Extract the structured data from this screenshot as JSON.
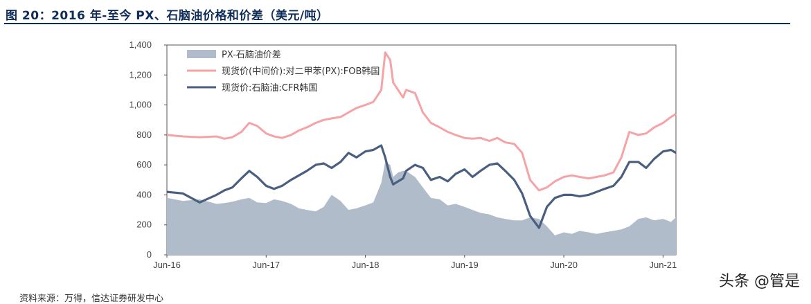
{
  "figure": {
    "title": "图 20：2016 年-至今 PX、石脑油价格和价差（美元/吨）",
    "source": "资料来源：万得，信达证券研发中心",
    "watermark": "头条 @管是"
  },
  "colors": {
    "title": "#0f2d5a",
    "spread": "#b1bccb",
    "px": "#f5a3a6",
    "naphtha": "#4a5f80"
  },
  "chart_data": {
    "type": "line",
    "title": "",
    "xlabel": "",
    "ylabel": "",
    "ylim": [
      0,
      1400
    ],
    "yticks": [
      0,
      200,
      400,
      600,
      800,
      1000,
      1200,
      1400
    ],
    "ytick_labels": [
      "0",
      "200",
      "400",
      "600",
      "800",
      "1,000",
      "1,200",
      "1,400"
    ],
    "xlim": [
      2016.42,
      2021.55
    ],
    "xticks": [
      2016.42,
      2017.42,
      2018.42,
      2019.42,
      2020.42,
      2021.42
    ],
    "xtick_labels": [
      "Jun-16",
      "Jun-17",
      "Jun-18",
      "Jun-19",
      "Jun-20",
      "Jun-21"
    ],
    "x": [
      2016.42,
      2016.58,
      2016.75,
      2016.92,
      2017.0,
      2017.08,
      2017.17,
      2017.25,
      2017.33,
      2017.42,
      2017.5,
      2017.58,
      2017.67,
      2017.75,
      2017.83,
      2017.92,
      2018.0,
      2018.08,
      2018.17,
      2018.25,
      2018.33,
      2018.42,
      2018.5,
      2018.58,
      2018.62,
      2018.67,
      2018.7,
      2018.75,
      2018.8,
      2018.83,
      2018.92,
      2019.0,
      2019.08,
      2019.17,
      2019.25,
      2019.33,
      2019.42,
      2019.5,
      2019.58,
      2019.67,
      2019.75,
      2019.83,
      2019.92,
      2020.0,
      2020.08,
      2020.17,
      2020.25,
      2020.33,
      2020.42,
      2020.5,
      2020.58,
      2020.67,
      2020.75,
      2020.83,
      2020.92,
      2021.0,
      2021.08,
      2021.17,
      2021.25,
      2021.33,
      2021.42,
      2021.5,
      2021.55
    ],
    "series": [
      {
        "name": "PX-石脑油价差",
        "style": "area",
        "values": [
          380,
          360,
          370,
          340,
          345,
          355,
          370,
          380,
          350,
          345,
          370,
          360,
          340,
          310,
          300,
          290,
          320,
          400,
          360,
          300,
          310,
          330,
          350,
          480,
          620,
          600,
          520,
          550,
          560,
          560,
          520,
          450,
          380,
          370,
          330,
          340,
          320,
          300,
          280,
          270,
          250,
          240,
          230,
          230,
          250,
          240,
          190,
          130,
          150,
          140,
          160,
          150,
          140,
          150,
          160,
          170,
          190,
          240,
          250,
          230,
          240,
          220,
          250
        ]
      },
      {
        "name": "现货价(中间价):对二甲苯(PX):FOB韩国",
        "style": "line",
        "values": [
          800,
          790,
          785,
          790,
          775,
          785,
          820,
          880,
          860,
          810,
          790,
          780,
          800,
          830,
          850,
          880,
          900,
          910,
          920,
          950,
          980,
          1000,
          1020,
          1100,
          1350,
          1300,
          1150,
          1100,
          1050,
          1100,
          1080,
          950,
          880,
          850,
          820,
          800,
          780,
          775,
          780,
          760,
          780,
          750,
          740,
          680,
          500,
          430,
          450,
          490,
          520,
          530,
          520,
          510,
          520,
          530,
          550,
          650,
          820,
          800,
          810,
          850,
          880,
          920,
          940
        ]
      },
      {
        "name": "现货价:石脑油:CFR韩国",
        "style": "line",
        "values": [
          420,
          410,
          350,
          400,
          430,
          450,
          510,
          560,
          520,
          460,
          440,
          460,
          500,
          530,
          560,
          600,
          610,
          580,
          620,
          680,
          650,
          690,
          700,
          730,
          650,
          520,
          470,
          490,
          510,
          560,
          600,
          580,
          500,
          520,
          490,
          540,
          570,
          520,
          560,
          600,
          610,
          560,
          500,
          410,
          260,
          180,
          320,
          380,
          400,
          400,
          390,
          400,
          420,
          440,
          460,
          520,
          620,
          620,
          580,
          640,
          690,
          700,
          680
        ]
      }
    ],
    "legend_position": "top-left"
  }
}
